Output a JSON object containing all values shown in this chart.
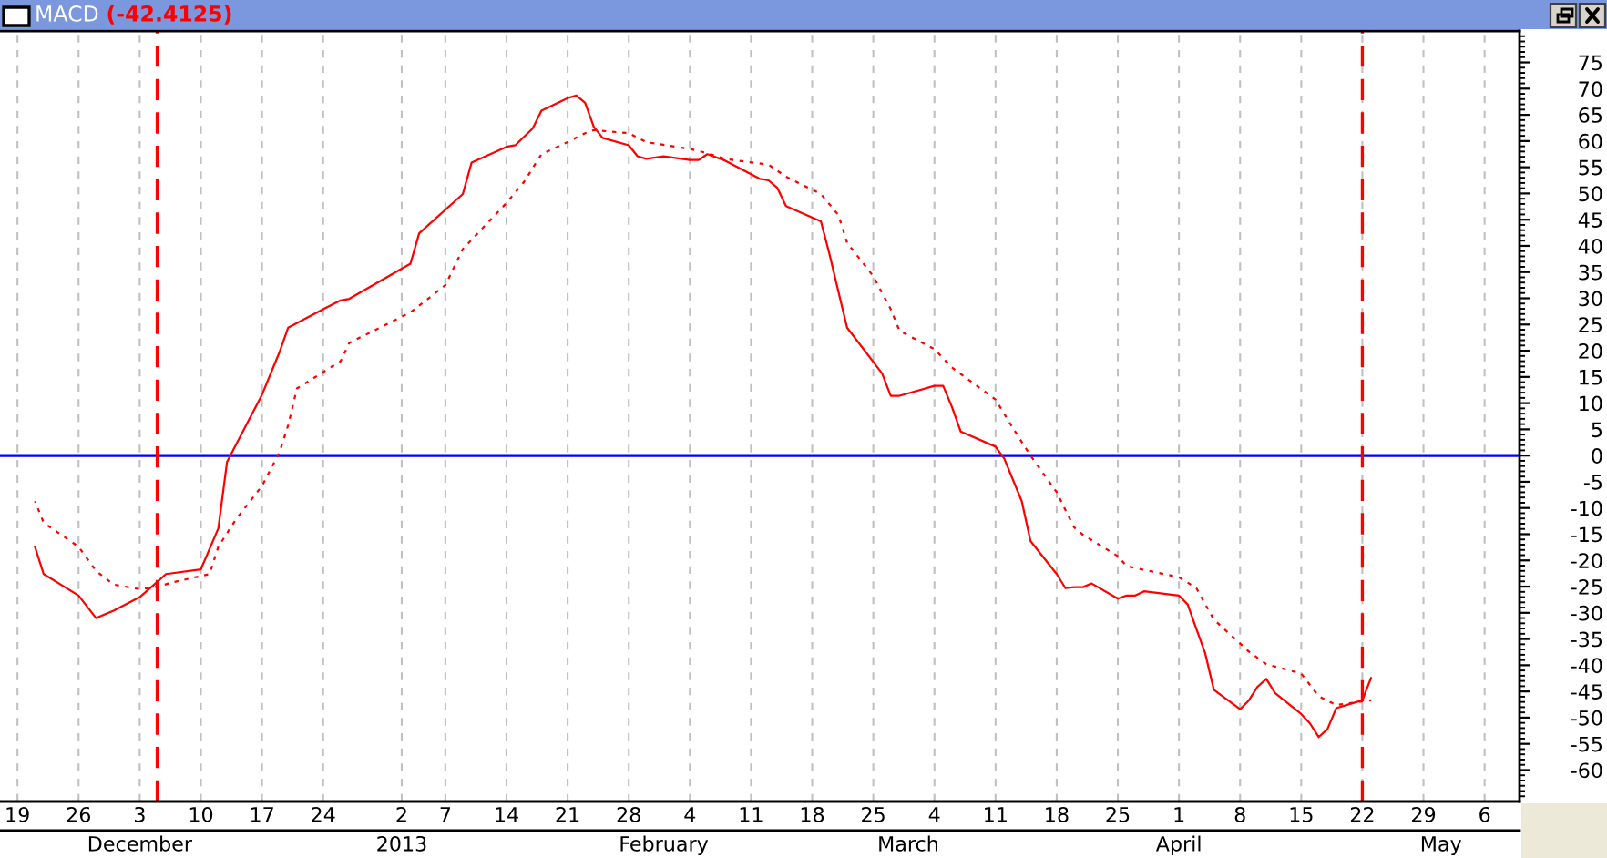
{
  "chart_data": {
    "type": "line",
    "title": "MACD",
    "subtitle": "(-42.4125)",
    "grid": "x",
    "xlim": [
      "2012-11-17",
      "2013-05-10"
    ],
    "xticks": [
      {
        "value": "2012-11-19",
        "label": "19"
      },
      {
        "value": "2012-11-26",
        "label": "26"
      },
      {
        "value": "2012-12-03",
        "label": "3"
      },
      {
        "value": "2012-12-10",
        "label": "10"
      },
      {
        "value": "2012-12-17",
        "label": "17"
      },
      {
        "value": "2012-12-24",
        "label": "24"
      },
      {
        "value": "2013-01-02",
        "label": "2"
      },
      {
        "value": "2013-01-07",
        "label": "7"
      },
      {
        "value": "2013-01-14",
        "label": "14"
      },
      {
        "value": "2013-01-21",
        "label": "21"
      },
      {
        "value": "2013-01-28",
        "label": "28"
      },
      {
        "value": "2013-02-04",
        "label": "4"
      },
      {
        "value": "2013-02-11",
        "label": "11"
      },
      {
        "value": "2013-02-18",
        "label": "18"
      },
      {
        "value": "2013-02-25",
        "label": "25"
      },
      {
        "value": "2013-03-04",
        "label": "4"
      },
      {
        "value": "2013-03-11",
        "label": "11"
      },
      {
        "value": "2013-03-18",
        "label": "18"
      },
      {
        "value": "2013-03-25",
        "label": "25"
      },
      {
        "value": "2013-04-01",
        "label": "1"
      },
      {
        "value": "2013-04-08",
        "label": "8"
      },
      {
        "value": "2013-04-15",
        "label": "15"
      },
      {
        "value": "2013-04-22",
        "label": "22"
      },
      {
        "value": "2013-04-29",
        "label": "29"
      },
      {
        "value": "2013-05-06",
        "label": "6"
      }
    ],
    "x2lim": [
      "2012-11-17",
      "2013-05-10"
    ],
    "x2ticks": [
      {
        "value": "2012-12-03",
        "label": "December"
      },
      {
        "value": "2013-01-02",
        "label": "2013"
      },
      {
        "value": "2013-02-01",
        "label": "February"
      },
      {
        "value": "2013-03-01",
        "label": "March"
      },
      {
        "value": "2013-04-01",
        "label": "April"
      },
      {
        "value": "2013-05-01",
        "label": "May"
      }
    ],
    "ylim": [
      -66,
      81
    ],
    "yticks": [
      {
        "value": -65,
        "label": null
      },
      {
        "value": -64,
        "label": null
      },
      {
        "value": -63,
        "label": null
      },
      {
        "value": -62,
        "label": null
      },
      {
        "value": -61,
        "label": null
      },
      -60,
      {
        "value": -59,
        "label": null
      },
      {
        "value": -58,
        "label": null
      },
      {
        "value": -57,
        "label": null
      },
      {
        "value": -56,
        "label": null
      },
      -55,
      {
        "value": -54,
        "label": null
      },
      {
        "value": -53,
        "label": null
      },
      {
        "value": -52,
        "label": null
      },
      {
        "value": -51,
        "label": null
      },
      -50,
      {
        "value": -49,
        "label": null
      },
      {
        "value": -48,
        "label": null
      },
      {
        "value": -47,
        "label": null
      },
      {
        "value": -46,
        "label": null
      },
      -45,
      {
        "value": -44,
        "label": null
      },
      {
        "value": -43,
        "label": null
      },
      {
        "value": -42,
        "label": null
      },
      {
        "value": -41,
        "label": null
      },
      -40,
      {
        "value": -39,
        "label": null
      },
      {
        "value": -38,
        "label": null
      },
      {
        "value": -37,
        "label": null
      },
      {
        "value": -36,
        "label": null
      },
      -35,
      {
        "value": -34,
        "label": null
      },
      {
        "value": -33,
        "label": null
      },
      {
        "value": -32,
        "label": null
      },
      {
        "value": -31,
        "label": null
      },
      -30,
      {
        "value": -29,
        "label": null
      },
      {
        "value": -28,
        "label": null
      },
      {
        "value": -27,
        "label": null
      },
      {
        "value": -26,
        "label": null
      },
      -25,
      {
        "value": -24,
        "label": null
      },
      {
        "value": -23,
        "label": null
      },
      {
        "value": -22,
        "label": null
      },
      {
        "value": -21,
        "label": null
      },
      -20,
      {
        "value": -19,
        "label": null
      },
      {
        "value": -18,
        "label": null
      },
      {
        "value": -17,
        "label": null
      },
      {
        "value": -16,
        "label": null
      },
      -15,
      {
        "value": -14,
        "label": null
      },
      {
        "value": -13,
        "label": null
      },
      {
        "value": -12,
        "label": null
      },
      {
        "value": -11,
        "label": null
      },
      -10,
      {
        "value": -9,
        "label": null
      },
      {
        "value": -8,
        "label": null
      },
      {
        "value": -7,
        "label": null
      },
      {
        "value": -6,
        "label": null
      },
      -5,
      {
        "value": -4,
        "label": null
      },
      {
        "value": -3,
        "label": null
      },
      {
        "value": -2,
        "label": null
      },
      {
        "value": -1,
        "label": null
      },
      0,
      {
        "value": 1,
        "label": null
      },
      {
        "value": 2,
        "label": null
      },
      {
        "value": 3,
        "label": null
      },
      {
        "value": 4,
        "label": null
      },
      5,
      {
        "value": 6,
        "label": null
      },
      {
        "value": 7,
        "label": null
      },
      {
        "value": 8,
        "label": null
      },
      {
        "value": 9,
        "label": null
      },
      10,
      {
        "value": 11,
        "label": null
      },
      {
        "value": 12,
        "label": null
      },
      {
        "value": 13,
        "label": null
      },
      {
        "value": 14,
        "label": null
      },
      15,
      {
        "value": 16,
        "label": null
      },
      {
        "value": 17,
        "label": null
      },
      {
        "value": 18,
        "label": null
      },
      {
        "value": 19,
        "label": null
      },
      20,
      {
        "value": 21,
        "label": null
      },
      {
        "value": 22,
        "label": null
      },
      {
        "value": 23,
        "label": null
      },
      {
        "value": 24,
        "label": null
      },
      25,
      {
        "value": 26,
        "label": null
      },
      {
        "value": 27,
        "label": null
      },
      {
        "value": 28,
        "label": null
      },
      {
        "value": 29,
        "label": null
      },
      30,
      {
        "value": 31,
        "label": null
      },
      {
        "value": 32,
        "label": null
      },
      {
        "value": 33,
        "label": null
      },
      {
        "value": 34,
        "label": null
      },
      35,
      {
        "value": 36,
        "label": null
      },
      {
        "value": 37,
        "label": null
      },
      {
        "value": 38,
        "label": null
      },
      {
        "value": 39,
        "label": null
      },
      40,
      {
        "value": 41,
        "label": null
      },
      {
        "value": 42,
        "label": null
      },
      {
        "value": 43,
        "label": null
      },
      {
        "value": 44,
        "label": null
      },
      45,
      {
        "value": 46,
        "label": null
      },
      {
        "value": 47,
        "label": null
      },
      {
        "value": 48,
        "label": null
      },
      {
        "value": 49,
        "label": null
      },
      50,
      {
        "value": 51,
        "label": null
      },
      {
        "value": 52,
        "label": null
      },
      {
        "value": 53,
        "label": null
      },
      {
        "value": 54,
        "label": null
      },
      55,
      {
        "value": 56,
        "label": null
      },
      {
        "value": 57,
        "label": null
      },
      {
        "value": 58,
        "label": null
      },
      {
        "value": 59,
        "label": null
      },
      60,
      {
        "value": 61,
        "label": null
      },
      {
        "value": 62,
        "label": null
      },
      {
        "value": 63,
        "label": null
      },
      {
        "value": 64,
        "label": null
      },
      65,
      {
        "value": 66,
        "label": null
      },
      {
        "value": 67,
        "label": null
      },
      {
        "value": 68,
        "label": null
      },
      {
        "value": 69,
        "label": null
      },
      70,
      {
        "value": 71,
        "label": null
      },
      {
        "value": 72,
        "label": null
      },
      {
        "value": 73,
        "label": null
      },
      {
        "value": 74,
        "label": null
      },
      75,
      {
        "value": 76,
        "label": null
      },
      {
        "value": 77,
        "label": null
      },
      {
        "value": 78,
        "label": null
      },
      {
        "value": 79,
        "label": null
      },
      {
        "value": 80,
        "label": null
      }
    ],
    "ref_lines": [
      {
        "axis": "y",
        "value": 0,
        "color": "#0000ff",
        "line_style": "solid"
      },
      {
        "axis": "x",
        "value": "2012-12-05",
        "color": "#ff0000",
        "line_style": "dashed"
      },
      {
        "axis": "x",
        "value": "2013-04-22",
        "color": "#ff0000",
        "line_style": "dashed"
      }
    ],
    "series": [
      {
        "color": "#ff0000",
        "line_style": "solid",
        "x": [
          "2012-11-21",
          "2012-11-22",
          "2012-11-26",
          "2012-11-28",
          "2012-11-30",
          "2012-12-03",
          "2012-12-05",
          "2012-12-06",
          "2012-12-10",
          "2012-12-12",
          "2012-12-13",
          "2012-12-17",
          "2012-12-19",
          "2012-12-20",
          "2012-12-24",
          "2012-12-26",
          "2012-12-27",
          "2013-01-03",
          "2013-01-04",
          "2013-01-09",
          "2013-01-10",
          "2013-01-14",
          "2013-01-15",
          "2013-01-17",
          "2013-01-18",
          "2013-01-21",
          "2013-01-22",
          "2013-01-23",
          "2013-01-24",
          "2013-01-25",
          "2013-01-28",
          "2013-01-29",
          "2013-01-30",
          "2013-02-01",
          "2013-02-04",
          "2013-02-05",
          "2013-02-06",
          "2013-02-08",
          "2013-02-12",
          "2013-02-13",
          "2013-02-14",
          "2013-02-15",
          "2013-02-19",
          "2013-02-20",
          "2013-02-21",
          "2013-02-22",
          "2013-02-26",
          "2013-02-27",
          "2013-02-28",
          "2013-03-04",
          "2013-03-05",
          "2013-03-06",
          "2013-03-07",
          "2013-03-11",
          "2013-03-12",
          "2013-03-14",
          "2013-03-15",
          "2013-03-18",
          "2013-03-19",
          "2013-03-20",
          "2013-03-21",
          "2013-03-22",
          "2013-03-25",
          "2013-03-26",
          "2013-03-27",
          "2013-03-28",
          "2013-04-01",
          "2013-04-02",
          "2013-04-03",
          "2013-04-04",
          "2013-04-05",
          "2013-04-08",
          "2013-04-09",
          "2013-04-10",
          "2013-04-11",
          "2013-04-12",
          "2013-04-15",
          "2013-04-16",
          "2013-04-17",
          "2013-04-18",
          "2013-04-19",
          "2013-04-22",
          "2013-04-23"
        ],
        "values": [
          -17.4,
          -22.6,
          -26.7,
          -31.0,
          -29.6,
          -27.0,
          -24.1,
          -22.6,
          -21.7,
          -13.9,
          -1.2,
          11.6,
          19.7,
          24.4,
          27.9,
          29.6,
          29.9,
          36.6,
          42.4,
          49.9,
          55.9,
          58.9,
          59.2,
          62.4,
          65.8,
          68.2,
          68.7,
          67.3,
          62.7,
          60.6,
          59.2,
          57.1,
          56.6,
          57.1,
          56.4,
          56.4,
          57.5,
          56.3,
          52.8,
          52.5,
          51.1,
          47.6,
          44.7,
          38.3,
          31.3,
          24.4,
          15.7,
          11.4,
          11.4,
          13.3,
          13.3,
          9.3,
          4.6,
          1.7,
          -0.6,
          -8.7,
          -16.3,
          -22.6,
          -25.3,
          -25.1,
          -25.1,
          -24.4,
          -27.3,
          -26.7,
          -26.7,
          -25.9,
          -26.7,
          -28.4,
          -33.1,
          -37.7,
          -44.7,
          -48.4,
          -46.7,
          -44.1,
          -42.6,
          -45.3,
          -49.3,
          -51.1,
          -53.7,
          -52.2,
          -48.2,
          -46.7,
          -42.4
        ]
      },
      {
        "color": "#ff0000",
        "line_style": "dotted",
        "x": [
          "2012-11-21",
          "2012-11-22",
          "2012-11-26",
          "2012-11-28",
          "2012-11-30",
          "2012-12-03",
          "2012-12-05",
          "2012-12-07",
          "2012-12-11",
          "2012-12-12",
          "2012-12-14",
          "2012-12-17",
          "2012-12-19",
          "2012-12-20",
          "2012-12-21",
          "2012-12-26",
          "2012-12-27",
          "2013-01-03",
          "2013-01-07",
          "2013-01-09",
          "2013-01-14",
          "2013-01-16",
          "2013-01-18",
          "2013-01-21",
          "2013-01-23",
          "2013-01-24",
          "2013-01-28",
          "2013-01-30",
          "2013-02-04",
          "2013-02-06",
          "2013-02-08",
          "2013-02-13",
          "2013-02-15",
          "2013-02-19",
          "2013-02-21",
          "2013-02-22",
          "2013-02-25",
          "2013-02-27",
          "2013-02-28",
          "2013-03-04",
          "2013-03-06",
          "2013-03-11",
          "2013-03-13",
          "2013-03-15",
          "2013-03-18",
          "2013-03-19",
          "2013-03-20",
          "2013-03-21",
          "2013-03-25",
          "2013-03-26",
          "2013-04-01",
          "2013-04-03",
          "2013-04-05",
          "2013-04-09",
          "2013-04-11",
          "2013-04-15",
          "2013-04-17",
          "2013-04-19",
          "2013-04-23"
        ],
        "values": [
          -8.7,
          -12.8,
          -17.4,
          -22.0,
          -24.6,
          -25.5,
          -25.0,
          -24.1,
          -22.6,
          -17.4,
          -12.2,
          -5.8,
          0.6,
          5.8,
          12.8,
          18.0,
          21.5,
          27.3,
          32.5,
          39.4,
          48.2,
          52.2,
          57.5,
          59.8,
          61.5,
          62.1,
          61.5,
          59.8,
          58.5,
          57.7,
          56.6,
          55.5,
          53.2,
          49.9,
          45.9,
          40.6,
          34.2,
          27.9,
          23.8,
          20.3,
          16.8,
          10.7,
          5.2,
          0.0,
          -7.0,
          -10.4,
          -13.7,
          -15.1,
          -19.2,
          -21.1,
          -23.2,
          -25.3,
          -31.3,
          -37.4,
          -39.8,
          -41.6,
          -45.9,
          -47.6,
          -46.7
        ]
      }
    ]
  }
}
